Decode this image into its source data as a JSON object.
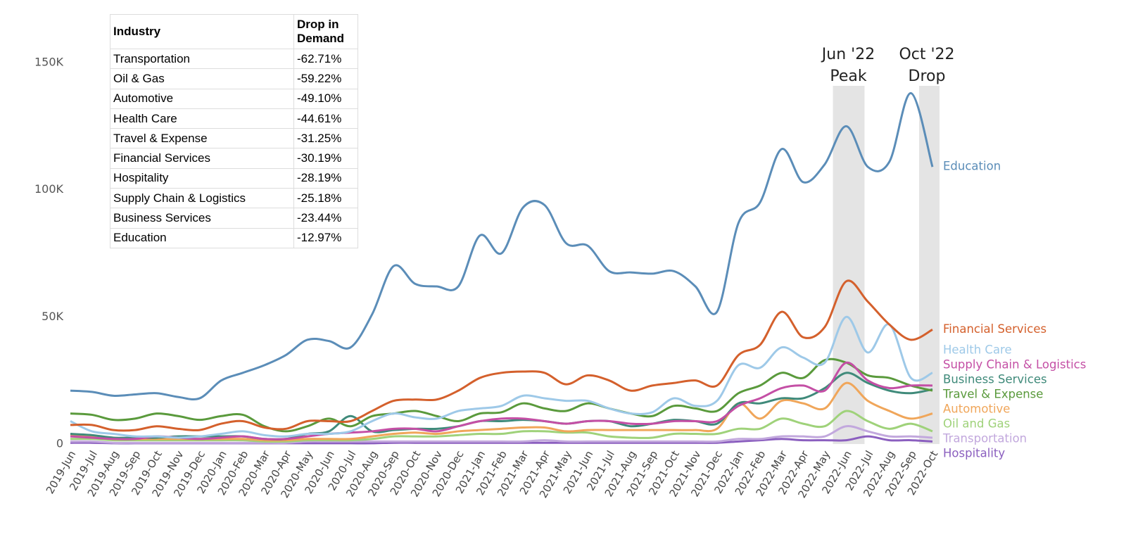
{
  "chart_data": {
    "type": "line",
    "categories": [
      "2019-Jun",
      "2019-Jul",
      "2019-Aug",
      "2019-Sep",
      "2019-Oct",
      "2019-Nov",
      "2019-Dec",
      "2020-Jan",
      "2020-Feb",
      "2020-Mar",
      "2020-Apr",
      "2020-May",
      "2020-Jun",
      "2020-Jul",
      "2020-Aug",
      "2020-Sep",
      "2020-Oct",
      "2020-Nov",
      "2020-Dec",
      "2021-Jan",
      "2021-Feb",
      "2021-Mar",
      "2021-Apr",
      "2021-May",
      "2021-Jun",
      "2021-Jul",
      "2021-Aug",
      "2021-Sep",
      "2021-Oct",
      "2021-Nov",
      "2021-Dec",
      "2022-Jan",
      "2022-Feb",
      "2022-Mar",
      "2022-Apr",
      "2022-May",
      "2022-Jun",
      "2022-Jul",
      "2022-Aug",
      "2022-Sep",
      "2022-Oct"
    ],
    "ylim": [
      0,
      150000
    ],
    "yticks": [
      0,
      {
        "value": 50000,
        "label": "50K"
      },
      {
        "value": 100000,
        "label": "100K"
      },
      {
        "value": 150000,
        "label": "150K"
      }
    ],
    "grid": false,
    "annotations": [
      {
        "text": [
          "Jun '22",
          "Peak"
        ],
        "at": "2022-Jun"
      },
      {
        "text": [
          "Oct '22",
          "Drop"
        ],
        "at": "2022-Oct"
      }
    ],
    "series": [
      {
        "name": "Education",
        "color": "#5b8db8",
        "values": [
          21000,
          20500,
          19000,
          19500,
          20000,
          18500,
          18000,
          25000,
          28000,
          31000,
          35000,
          41000,
          40500,
          38000,
          51000,
          70000,
          63000,
          62000,
          62000,
          82000,
          75000,
          93000,
          94000,
          79000,
          78000,
          68000,
          67500,
          67000,
          68000,
          62000,
          52000,
          87000,
          95000,
          116000,
          103000,
          110000,
          125000,
          109000,
          111000,
          138000,
          109000
        ]
      },
      {
        "name": "Financial Services",
        "color": "#d4602c",
        "values": [
          7500,
          7500,
          5500,
          5500,
          7000,
          6000,
          5500,
          8000,
          9000,
          6500,
          6000,
          9000,
          9000,
          9000,
          13000,
          17000,
          17500,
          17500,
          21000,
          26000,
          28000,
          28500,
          28000,
          23500,
          27000,
          25000,
          21000,
          23000,
          24000,
          25000,
          23000,
          35000,
          39000,
          52000,
          42000,
          46000,
          64000,
          56000,
          47000,
          41000,
          45000
        ]
      },
      {
        "name": "Health Care",
        "color": "#9ec9e8",
        "values": [
          9000,
          5000,
          4000,
          3000,
          3000,
          2500,
          3000,
          4000,
          5000,
          3500,
          3000,
          4000,
          4000,
          5000,
          9000,
          12000,
          10500,
          10000,
          13000,
          14000,
          15000,
          19000,
          18000,
          17000,
          17000,
          14000,
          12000,
          12500,
          18000,
          15000,
          17000,
          31000,
          30000,
          38000,
          34000,
          32000,
          50000,
          36000,
          47000,
          26000,
          28000
        ]
      },
      {
        "name": "Supply Chain & Logistics",
        "color": "#c44fa5",
        "values": [
          3000,
          2500,
          2000,
          2000,
          3000,
          2500,
          2000,
          2500,
          3000,
          2000,
          2000,
          3000,
          4000,
          4500,
          5000,
          6000,
          6000,
          5000,
          7000,
          9000,
          10000,
          10000,
          9000,
          8000,
          9000,
          9000,
          8000,
          8000,
          9000,
          9000,
          9000,
          15000,
          18000,
          22000,
          23000,
          21000,
          32000,
          25000,
          22000,
          23000,
          23000
        ]
      },
      {
        "name": "Travel & Expense",
        "color": "#5a9a3c",
        "values": [
          12000,
          11500,
          9500,
          10000,
          12000,
          11000,
          9500,
          11000,
          11500,
          7000,
          5000,
          7000,
          10000,
          7000,
          11000,
          12000,
          13000,
          11000,
          9000,
          12000,
          12500,
          16000,
          14000,
          13000,
          16000,
          14000,
          12000,
          11000,
          15000,
          14000,
          13000,
          20000,
          23000,
          28000,
          26000,
          33000,
          32000,
          27000,
          26000,
          23000,
          21000
        ]
      },
      {
        "name": "Business Services",
        "color": "#3f8a7a",
        "values": [
          4000,
          3500,
          2500,
          2500,
          2500,
          3000,
          3000,
          3000,
          3000,
          2000,
          2000,
          4000,
          5000,
          11000,
          5000,
          5500,
          6000,
          6000,
          7000,
          9000,
          9000,
          9500,
          9000,
          8000,
          9000,
          9000,
          7000,
          8000,
          9500,
          9000,
          8000,
          16000,
          16000,
          18000,
          18000,
          22000,
          28000,
          24000,
          21000,
          20000,
          21500
        ]
      },
      {
        "name": "Automotive",
        "color": "#f0a65a",
        "values": [
          3500,
          3000,
          2000,
          2000,
          2000,
          2000,
          2000,
          2000,
          2000,
          1500,
          1500,
          2000,
          2000,
          2000,
          3000,
          4000,
          4500,
          4000,
          5000,
          5500,
          6000,
          6500,
          6500,
          5000,
          5500,
          5500,
          5500,
          5500,
          5500,
          5500,
          6000,
          16000,
          10000,
          17000,
          16000,
          14000,
          24000,
          17000,
          13000,
          10000,
          12000
        ]
      },
      {
        "name": "Oil and Gas",
        "color": "#9fd27a",
        "values": [
          2000,
          2000,
          1500,
          1500,
          1500,
          1500,
          1500,
          1500,
          1500,
          1000,
          1000,
          1500,
          1500,
          1500,
          2000,
          3000,
          3000,
          3000,
          3500,
          4000,
          4000,
          5000,
          5000,
          4500,
          4500,
          3000,
          2500,
          2500,
          4000,
          4000,
          4000,
          6000,
          6000,
          10000,
          8000,
          7000,
          13000,
          9000,
          6000,
          8000,
          5000
        ]
      },
      {
        "name": "Transportation",
        "color": "#c2a8dd",
        "values": [
          1000,
          1000,
          500,
          500,
          500,
          500,
          500,
          500,
          500,
          500,
          500,
          1000,
          1000,
          1000,
          1000,
          1000,
          1000,
          1000,
          1000,
          1000,
          1000,
          1000,
          1500,
          1000,
          1000,
          1000,
          1000,
          1000,
          1000,
          1000,
          1000,
          2000,
          2000,
          3000,
          3000,
          3000,
          7000,
          5000,
          3000,
          3000,
          2500
        ]
      },
      {
        "name": "Hospitality",
        "color": "#8b5fbf",
        "values": [
          500,
          500,
          300,
          300,
          300,
          300,
          300,
          300,
          300,
          300,
          300,
          300,
          300,
          300,
          300,
          500,
          500,
          500,
          500,
          500,
          500,
          500,
          500,
          500,
          500,
          500,
          500,
          500,
          500,
          500,
          500,
          1000,
          1500,
          2000,
          1500,
          1500,
          1500,
          3000,
          1500,
          1500,
          1000
        ]
      }
    ]
  },
  "table": {
    "header": [
      "Industry",
      "Drop in Demand"
    ],
    "rows": [
      [
        "Transportation",
        "-62.71%"
      ],
      [
        "Oil & Gas",
        "-59.22%"
      ],
      [
        "Automotive",
        "-49.10%"
      ],
      [
        "Health Care",
        "-44.61%"
      ],
      [
        "Travel & Expense",
        "-31.25%"
      ],
      [
        "Financial Services",
        "-30.19%"
      ],
      [
        "Hospitality",
        "-28.19%"
      ],
      [
        "Supply Chain & Logistics",
        "-25.18%"
      ],
      [
        "Business Services",
        "-23.44%"
      ],
      [
        "Education",
        "-12.97%"
      ]
    ]
  }
}
